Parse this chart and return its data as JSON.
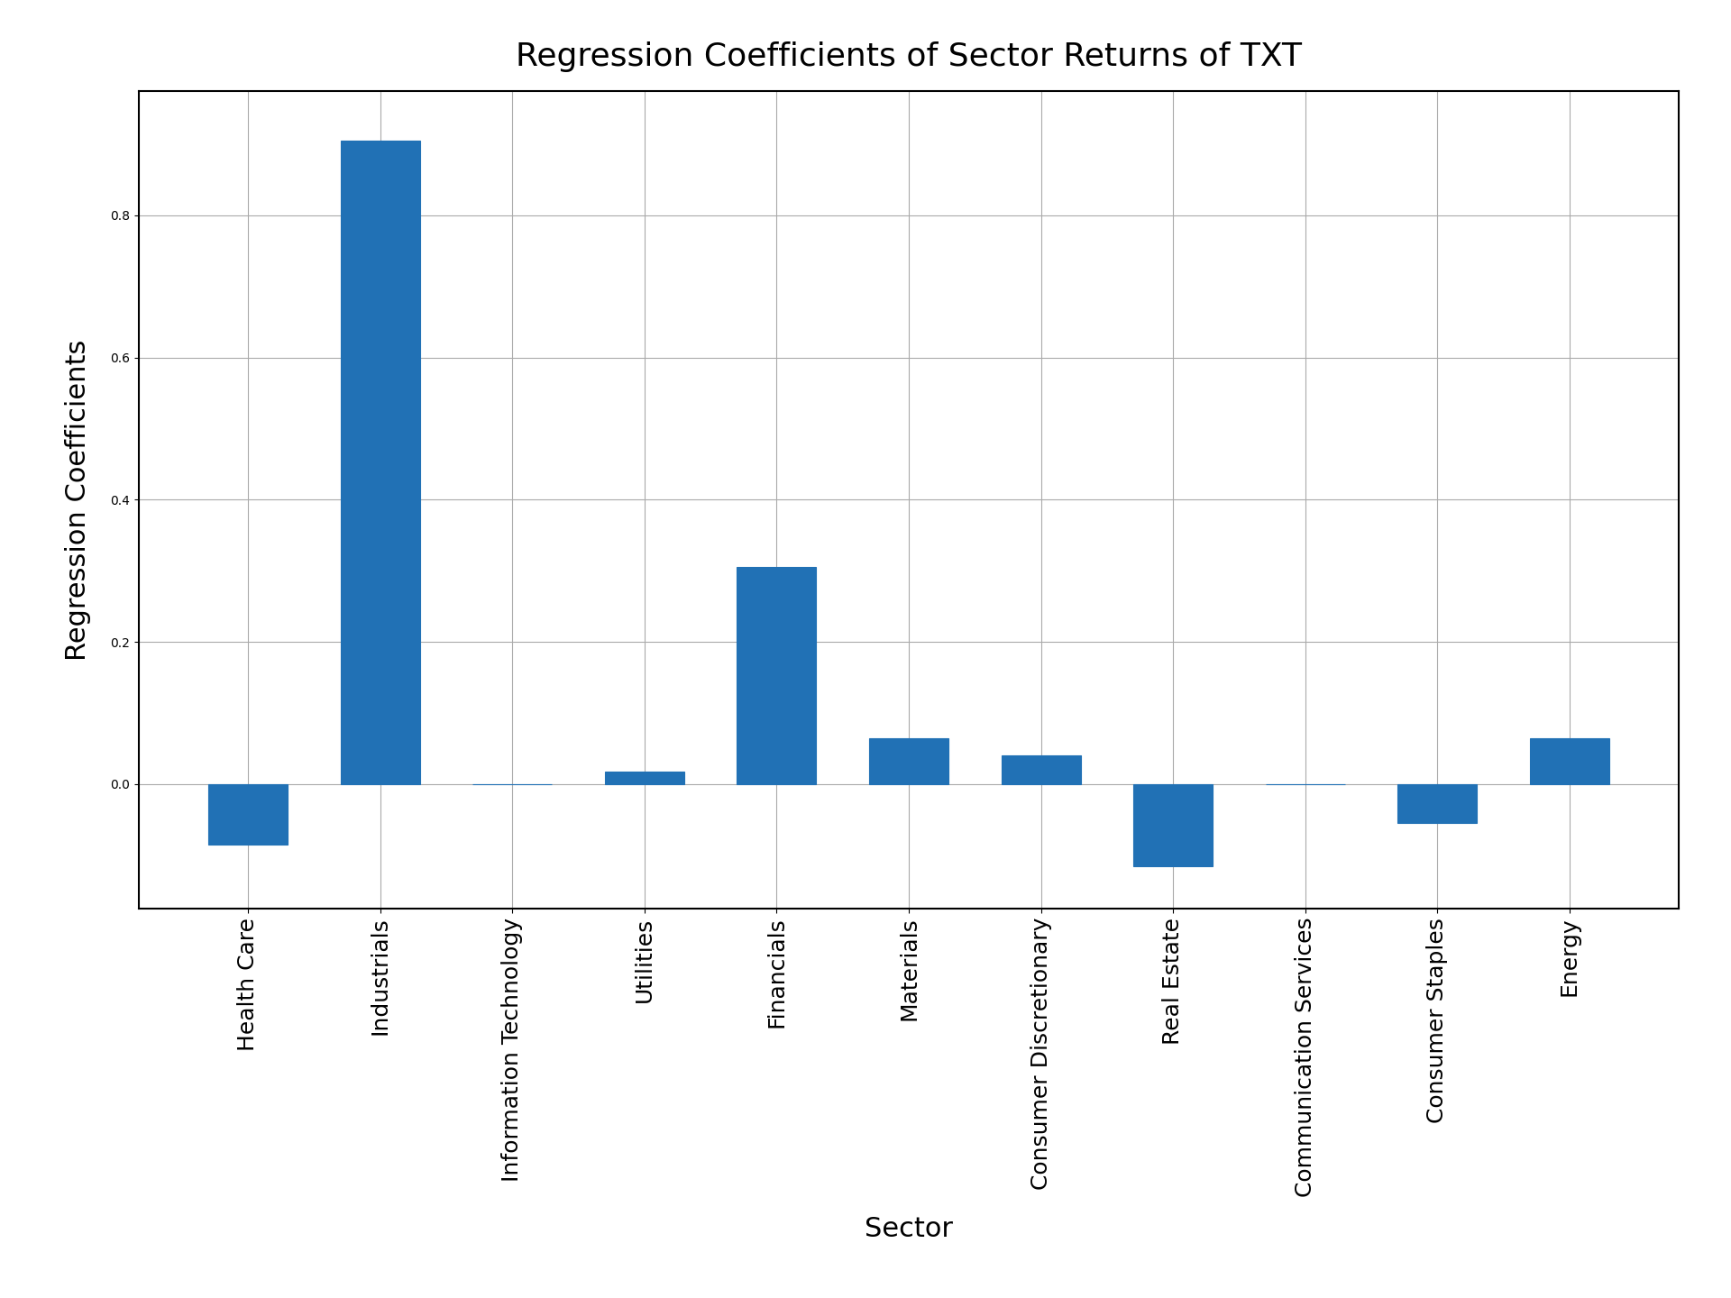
{
  "title": "Regression Coefficients of Sector Returns of TXT",
  "xlabel": "Sector",
  "ylabel": "Regression Coefficients",
  "categories": [
    "Health Care",
    "Industrials",
    "Information Technology",
    "Utilities",
    "Financials",
    "Materials",
    "Consumer Discretionary",
    "Real Estate",
    "Communication Services",
    "Consumer Staples",
    "Energy"
  ],
  "values": [
    -0.085,
    0.905,
    0.0,
    0.018,
    0.305,
    0.065,
    0.04,
    -0.115,
    0.0,
    -0.055,
    0.065
  ],
  "bar_color": "#2171b5",
  "bar_edgecolor": "#2171b5",
  "title_fontsize": 26,
  "label_fontsize": 22,
  "tick_fontsize": 18,
  "background_color": "#ffffff",
  "grid_color": "#aaaaaa",
  "ylim": [
    -0.175,
    0.975
  ]
}
